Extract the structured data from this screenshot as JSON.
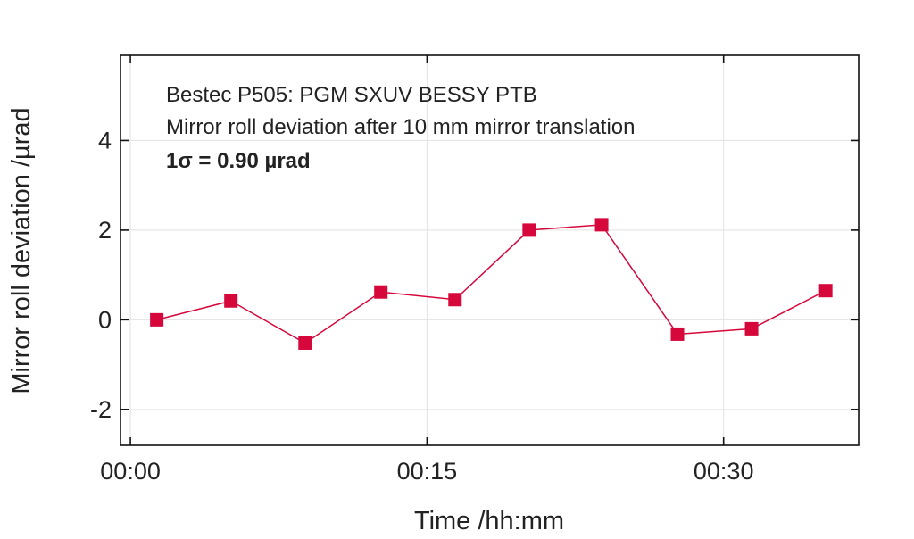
{
  "chart_data": {
    "type": "line",
    "xlabel": "Time /hh:mm",
    "ylabel": "Mirror roll deviation /µrad",
    "x_ticks": [
      {
        "minutes": 0,
        "label": "00:00"
      },
      {
        "minutes": 15,
        "label": "00:15"
      },
      {
        "minutes": 30,
        "label": "00:30"
      }
    ],
    "y_ticks": [
      -2,
      0,
      2,
      4
    ],
    "xlim": [
      "-00:00:30",
      "00:36:50"
    ],
    "ylim": [
      -2.8,
      5.9
    ],
    "grid": true,
    "marker": "square",
    "series": [
      {
        "color": "#d6083b",
        "x": [
          "00:01:20",
          "00:05:05",
          "00:08:50",
          "00:12:40",
          "00:16:25",
          "00:20:10",
          "00:23:50",
          "00:27:40",
          "00:31:25",
          "00:35:10"
        ],
        "x_minutes": [
          1.33,
          5.08,
          8.83,
          12.67,
          16.42,
          20.17,
          23.83,
          27.67,
          31.42,
          35.17
        ],
        "y": [
          0.0,
          0.42,
          -0.52,
          0.62,
          0.45,
          2.0,
          2.12,
          -0.32,
          -0.2,
          0.65
        ]
      }
    ],
    "annotations": [
      {
        "text": "Bestec P505: PGM SXUV BESSY PTB",
        "bold": false
      },
      {
        "text": "Mirror roll deviation after 10 mm mirror translation",
        "bold": false
      },
      {
        "text": "1σ = 0.90 µrad",
        "bold": true
      }
    ]
  }
}
